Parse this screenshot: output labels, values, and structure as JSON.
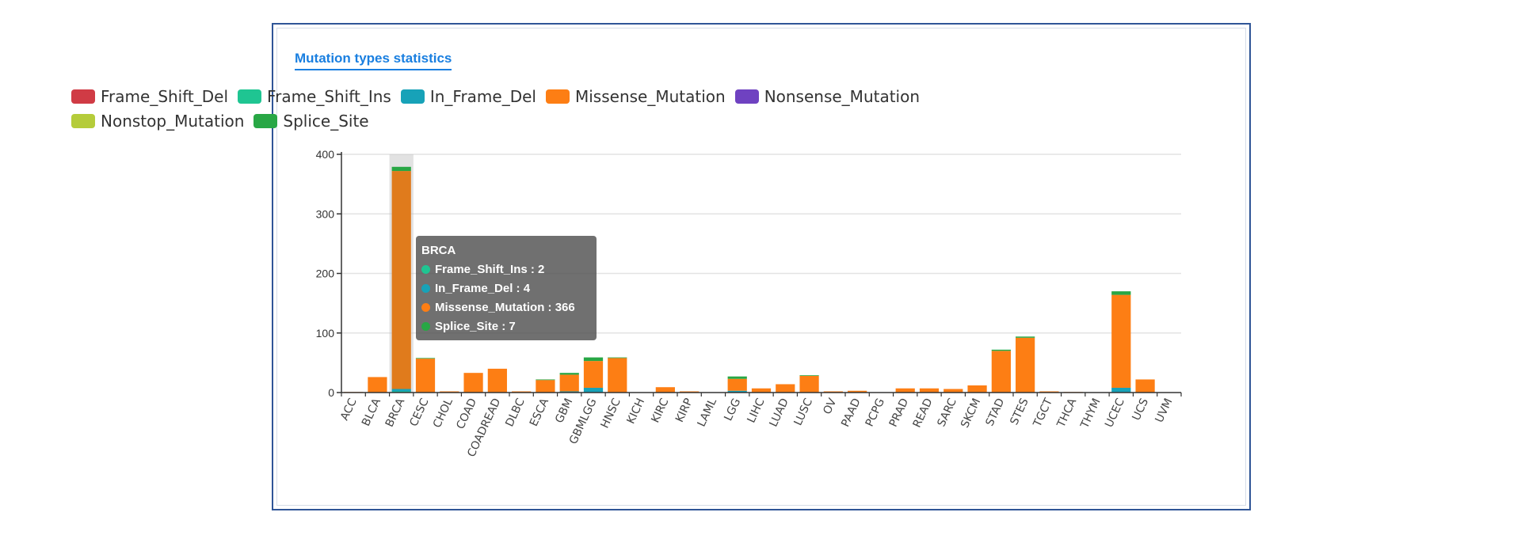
{
  "panel": {
    "title": "Mutation types statistics"
  },
  "chart_data": {
    "type": "bar",
    "stacked": true,
    "title": "",
    "xlabel": "",
    "ylabel": "",
    "ylim": [
      0,
      400
    ],
    "yticks": [
      0,
      100,
      200,
      300,
      400
    ],
    "grid": true,
    "legend_position": "top",
    "categories": [
      "ACC",
      "BLCA",
      "BRCA",
      "CESC",
      "CHOL",
      "COAD",
      "COADREAD",
      "DLBC",
      "ESCA",
      "GBM",
      "GBMLGG",
      "HNSC",
      "KICH",
      "KIRC",
      "KIRP",
      "LAML",
      "LGG",
      "LIHC",
      "LUAD",
      "LUSC",
      "OV",
      "PAAD",
      "PCPG",
      "PRAD",
      "READ",
      "SARC",
      "SKCM",
      "STAD",
      "STES",
      "TGCT",
      "THCA",
      "THYM",
      "UCEC",
      "UCS",
      "UVM"
    ],
    "series": [
      {
        "name": "Frame_Shift_Del",
        "color": "#d03b45",
        "values": [
          0,
          0,
          0,
          0,
          0,
          0,
          0,
          0,
          0,
          0,
          0,
          0,
          0,
          0,
          0,
          0,
          0,
          0,
          0,
          0,
          0,
          0,
          0,
          0,
          0,
          0,
          0,
          0,
          0,
          0,
          0,
          0,
          0,
          0,
          0
        ]
      },
      {
        "name": "Frame_Shift_Ins",
        "color": "#1fc592",
        "values": [
          0,
          0,
          2,
          0,
          0,
          0,
          0,
          0,
          0,
          0,
          0,
          0,
          0,
          0,
          0,
          0,
          0,
          0,
          0,
          0,
          0,
          0,
          0,
          0,
          0,
          0,
          0,
          0,
          0,
          0,
          0,
          0,
          0,
          0,
          0
        ]
      },
      {
        "name": "In_Frame_Del",
        "color": "#17a2b8",
        "values": [
          0,
          0,
          4,
          0,
          0,
          0,
          0,
          0,
          0,
          2,
          8,
          0,
          0,
          0,
          0,
          0,
          3,
          0,
          0,
          0,
          0,
          0,
          0,
          0,
          0,
          0,
          0,
          0,
          0,
          0,
          0,
          0,
          8,
          0,
          0
        ]
      },
      {
        "name": "Missense_Mutation",
        "color": "#fd7e14",
        "values": [
          1,
          26,
          366,
          57,
          2,
          33,
          40,
          2,
          21,
          28,
          45,
          58,
          0,
          9,
          2,
          0,
          20,
          7,
          14,
          28,
          2,
          3,
          0,
          7,
          7,
          6,
          12,
          70,
          92,
          2,
          1,
          0,
          156,
          22,
          0
        ]
      },
      {
        "name": "Nonsense_Mutation",
        "color": "#6f42c1",
        "values": [
          0,
          0,
          0,
          0,
          0,
          0,
          0,
          0,
          0,
          0,
          0,
          0,
          0,
          0,
          0,
          0,
          0,
          0,
          0,
          0,
          0,
          0,
          0,
          0,
          0,
          0,
          0,
          0,
          0,
          0,
          0,
          0,
          0,
          0,
          0
        ]
      },
      {
        "name": "Nonstop_Mutation",
        "color": "#b5cc3a",
        "values": [
          0,
          0,
          0,
          0,
          0,
          0,
          0,
          0,
          0,
          0,
          0,
          0,
          0,
          0,
          0,
          0,
          0,
          0,
          0,
          0,
          0,
          0,
          0,
          0,
          0,
          0,
          0,
          0,
          0,
          0,
          0,
          0,
          0,
          0,
          0
        ]
      },
      {
        "name": "Splice_Site",
        "color": "#28a745",
        "values": [
          0,
          0,
          7,
          1,
          0,
          0,
          0,
          0,
          1,
          3,
          6,
          1,
          0,
          0,
          0,
          0,
          4,
          0,
          0,
          1,
          0,
          0,
          0,
          0,
          0,
          0,
          0,
          2,
          2,
          0,
          0,
          0,
          6,
          0,
          0
        ]
      }
    ],
    "highlighted_category": "BRCA",
    "highlight_color": "#e07b1c",
    "tooltip": {
      "title": "BRCA",
      "items": [
        {
          "label": "Frame_Shift_Ins : 2",
          "color": "#1fc592"
        },
        {
          "label": "In_Frame_Del : 4",
          "color": "#17a2b8"
        },
        {
          "label": "Missense_Mutation : 366",
          "color": "#fd7e14"
        },
        {
          "label": "Splice_Site : 7",
          "color": "#28a745"
        }
      ]
    }
  }
}
